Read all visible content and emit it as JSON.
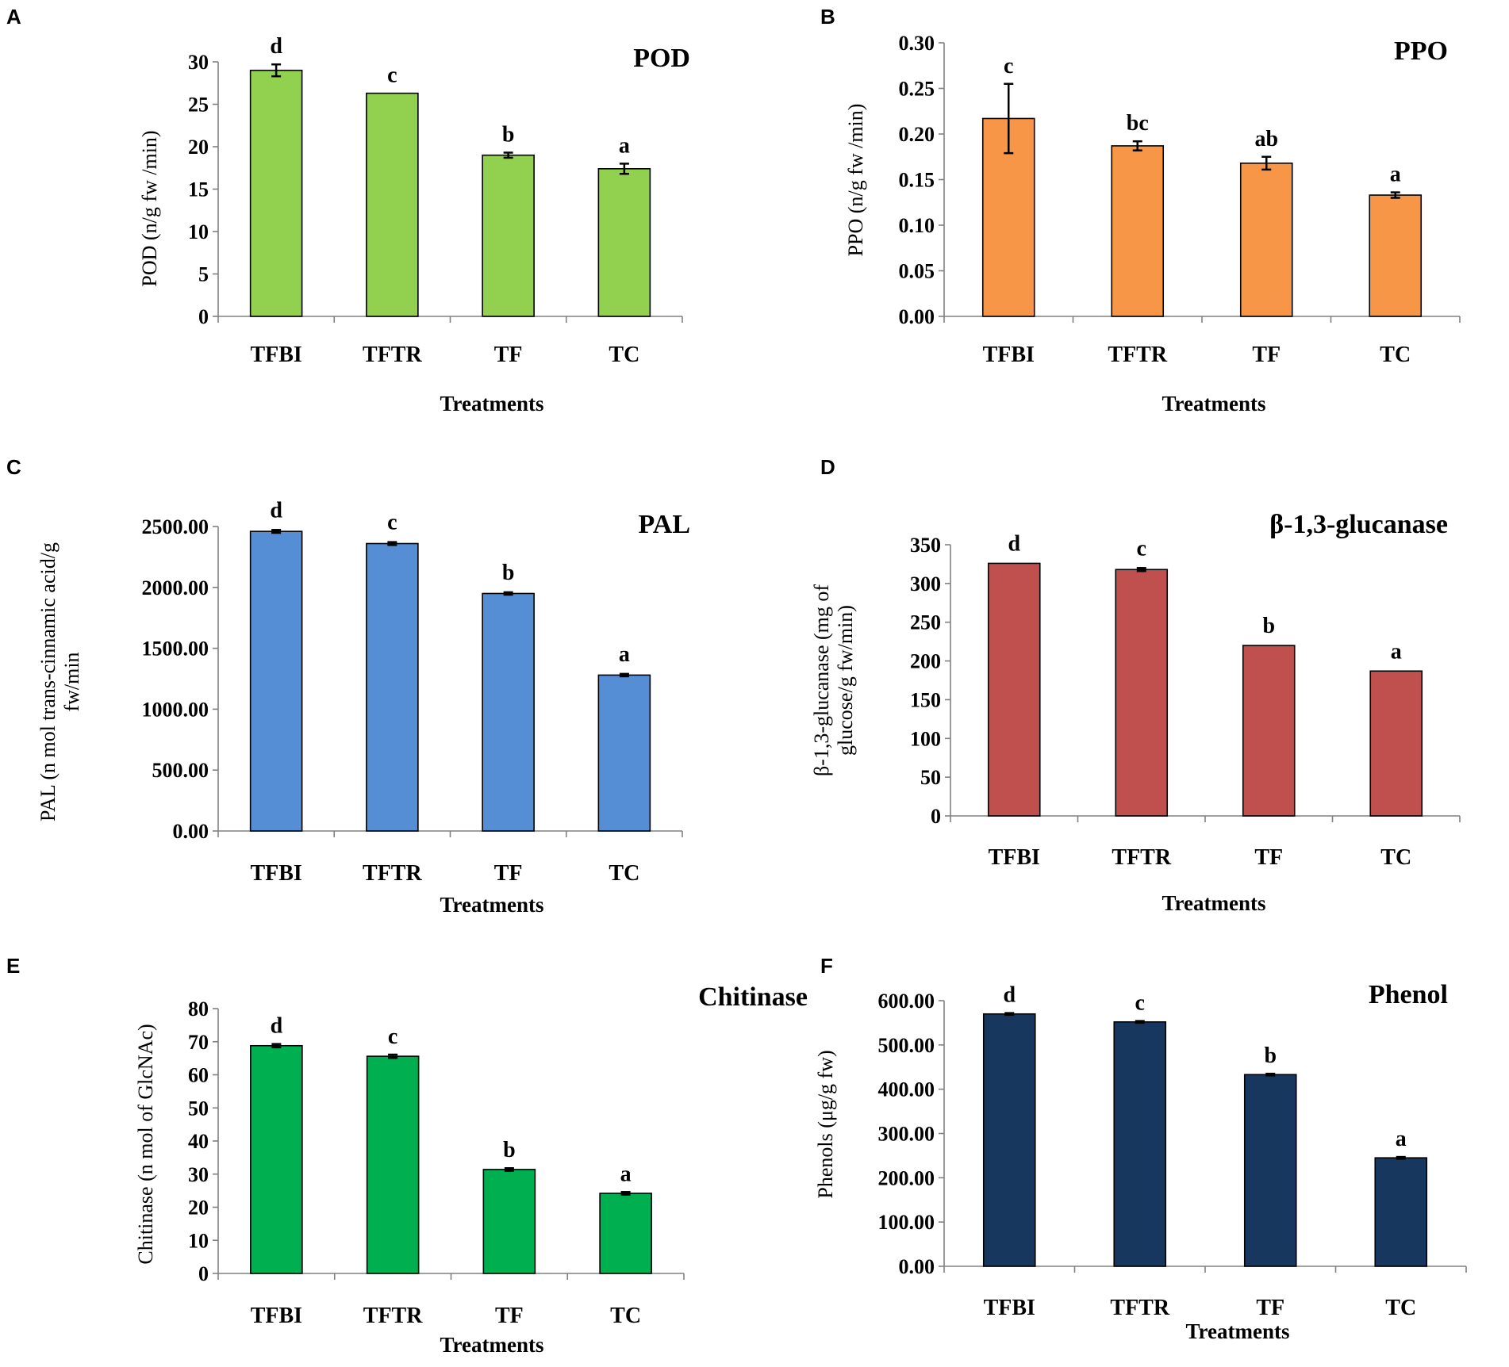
{
  "figure": {
    "panels": [
      "A",
      "B",
      "C",
      "D",
      "E",
      "F"
    ]
  },
  "chart_data": [
    {
      "panel": "A",
      "type": "bar",
      "title": "POD",
      "categories": [
        "TFBI",
        "TFTR",
        "TF",
        "TC"
      ],
      "values": [
        29.0,
        26.3,
        19.0,
        17.4
      ],
      "errors": [
        0.7,
        0,
        0.3,
        0.6
      ],
      "significance": [
        "d",
        "c",
        "b",
        "a"
      ],
      "xlabel": "Treatments",
      "ylabel": [
        "POD (n/g fw /min)"
      ],
      "ylim": [
        0,
        30
      ],
      "yticks": [
        "0",
        "5",
        "10",
        "15",
        "20",
        "25",
        "30"
      ],
      "color": "#92d050"
    },
    {
      "panel": "B",
      "type": "bar",
      "title": "PPO",
      "categories": [
        "TFBI",
        "TFTR",
        "TF",
        "TC"
      ],
      "values": [
        0.217,
        0.187,
        0.168,
        0.133
      ],
      "errors": [
        0.038,
        0.005,
        0.007,
        0.003
      ],
      "significance": [
        "c",
        "bc",
        "ab",
        "a"
      ],
      "xlabel": "Treatments",
      "ylabel": [
        "PPO (n/g fw /min)"
      ],
      "ylim": [
        0,
        0.3
      ],
      "yticks": [
        "0.00",
        "0.05",
        "0.10",
        "0.15",
        "0.20",
        "0.25",
        "0.30"
      ],
      "color": "#f79646"
    },
    {
      "panel": "C",
      "type": "bar",
      "title": "PAL",
      "categories": [
        "TFBI",
        "TFTR",
        "TF",
        "TC"
      ],
      "values": [
        2460,
        2360,
        1950,
        1280
      ],
      "errors": [
        12,
        12,
        10,
        10
      ],
      "significance": [
        "d",
        "c",
        "b",
        "a"
      ],
      "xlabel": "Treatments",
      "ylabel": [
        "PAL (n mol trans-cinnamic acid/g",
        "fw/min"
      ],
      "ylim": [
        0,
        2500
      ],
      "yticks": [
        "0.00",
        "500.00",
        "1000.00",
        "1500.00",
        "2000.00",
        "2500.00"
      ],
      "color": "#558ed5"
    },
    {
      "panel": "D",
      "type": "bar",
      "title": "β-1,3-glucanase",
      "categories": [
        "TFBI",
        "TFTR",
        "TF",
        "TC"
      ],
      "values": [
        326,
        318,
        220,
        187
      ],
      "errors": [
        0,
        2,
        0,
        0
      ],
      "significance": [
        "d",
        "c",
        "b",
        "a"
      ],
      "xlabel": "Treatments",
      "ylabel": [
        "β-1,3-glucanase (mg of",
        "glucose/g fw/min)"
      ],
      "ylim": [
        0,
        350
      ],
      "yticks": [
        "0",
        "50",
        "100",
        "150",
        "200",
        "250",
        "300",
        "350"
      ],
      "color": "#c0504d"
    },
    {
      "panel": "E",
      "type": "bar",
      "title": "Chitinase",
      "categories": [
        "TFBI",
        "TFTR",
        "TF",
        "TC"
      ],
      "values": [
        68.8,
        65.6,
        31.4,
        24.2
      ],
      "errors": [
        0.5,
        0.5,
        0.4,
        0.4
      ],
      "significance": [
        "d",
        "c",
        "b",
        "a"
      ],
      "xlabel": "Treatments",
      "ylabel": [
        "Chitinase (n mol of GlcNAc)"
      ],
      "ylim": [
        0,
        80
      ],
      "yticks": [
        "0",
        "10",
        "20",
        "30",
        "40",
        "50",
        "60",
        "70",
        "80"
      ],
      "color": "#00b050"
    },
    {
      "panel": "F",
      "type": "bar",
      "title": "Phenol",
      "categories": [
        "TFBI",
        "TFTR",
        "TF",
        "TC"
      ],
      "values": [
        570,
        552,
        433,
        245
      ],
      "errors": [
        2,
        2,
        2,
        2
      ],
      "significance": [
        "d",
        "c",
        "b",
        "a"
      ],
      "xlabel": "Treatments",
      "ylabel": [
        "Phenols (μg/g fw)"
      ],
      "ylim": [
        0,
        600
      ],
      "yticks": [
        "0.00",
        "100.00",
        "200.00",
        "300.00",
        "400.00",
        "500.00",
        "600.00"
      ],
      "color": "#17375e"
    }
  ]
}
